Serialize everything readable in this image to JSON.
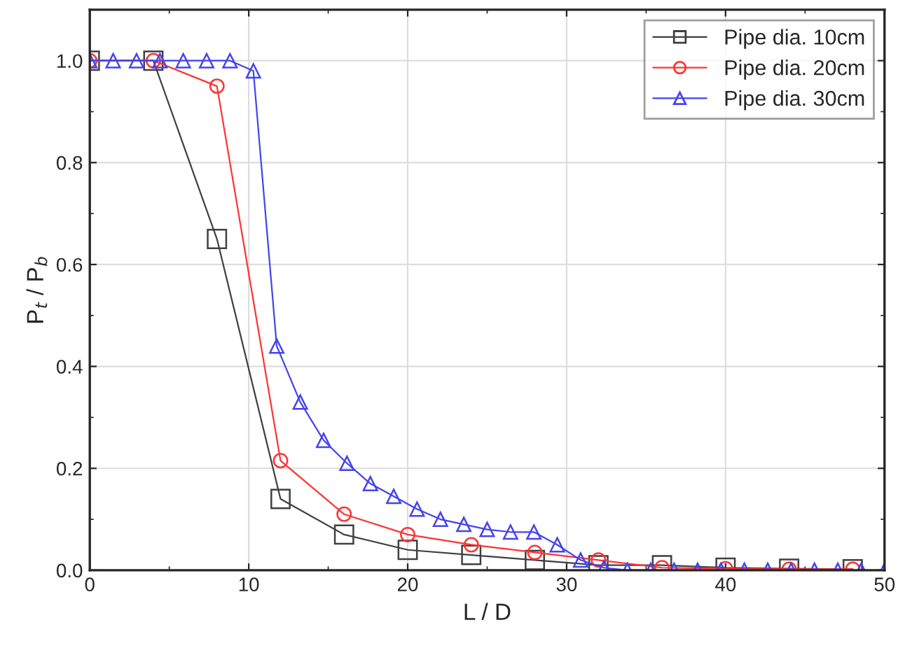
{
  "chart_data": {
    "type": "line",
    "xlabel": "L / D",
    "ylabel": "P$_{t}$ / P$_{b}$",
    "xlim": [
      0,
      50
    ],
    "xticks": [
      0,
      10,
      20,
      30,
      40,
      50
    ],
    "ylim": [
      0,
      1.1
    ],
    "yticks": [
      {
        "value": 0,
        "label": "0.0"
      },
      {
        "value": 0.2,
        "label": "0.2"
      },
      {
        "value": 0.4,
        "label": "0.4"
      },
      {
        "value": 0.6,
        "label": "0.6"
      },
      {
        "value": 0.8,
        "label": "0.8"
      },
      {
        "value": 1.0,
        "label": "1.0"
      }
    ],
    "grid": true,
    "legend": "top right",
    "line_style": "solid",
    "series": [
      {
        "name": "Pipe dia. 10cm",
        "color": "#404040",
        "marker": "square",
        "x": [
          0,
          4,
          8,
          12,
          16,
          20,
          24,
          28,
          32,
          36,
          40,
          44,
          48
        ],
        "values": [
          1.0,
          1.0,
          0.65,
          0.14,
          0.07,
          0.04,
          0.03,
          0.02,
          0.01,
          0.01,
          0.005,
          0.003,
          0.002
        ]
      },
      {
        "name": "Pipe dia. 20cm",
        "color": "#ff3333",
        "marker": "circle",
        "x": [
          0,
          4,
          8,
          12,
          16,
          20,
          24,
          28,
          32,
          36,
          40,
          44,
          48
        ],
        "values": [
          1.0,
          1.0,
          0.95,
          0.215,
          0.11,
          0.07,
          0.05,
          0.035,
          0.02,
          0.005,
          0.003,
          0.002,
          0.002
        ]
      },
      {
        "name": "Pipe dia. 30cm",
        "color": "#4444ee",
        "marker": "triangle",
        "x": [
          0,
          1.47,
          2.94,
          4.41,
          5.88,
          7.35,
          8.82,
          10.29,
          11.76,
          13.24,
          14.71,
          16.18,
          17.65,
          19.12,
          20.59,
          22.06,
          23.53,
          25.0,
          26.47,
          27.94,
          29.41,
          30.88,
          32.35,
          33.82,
          35.29,
          36.76,
          38.24,
          39.71,
          41.18,
          42.65,
          44.12,
          45.59,
          47.06,
          48.53,
          50.0
        ],
        "values": [
          1.0,
          1.0,
          1.0,
          1.0,
          1.0,
          1.0,
          1.0,
          0.98,
          0.44,
          0.33,
          0.255,
          0.21,
          0.17,
          0.145,
          0.12,
          0.1,
          0.09,
          0.08,
          0.075,
          0.075,
          0.05,
          0.02,
          0.005,
          0.0,
          0.0,
          0.0,
          0.0,
          0.0,
          0.0,
          0.0,
          0.0,
          0.0,
          0.0,
          0.0,
          0.0
        ]
      }
    ]
  }
}
